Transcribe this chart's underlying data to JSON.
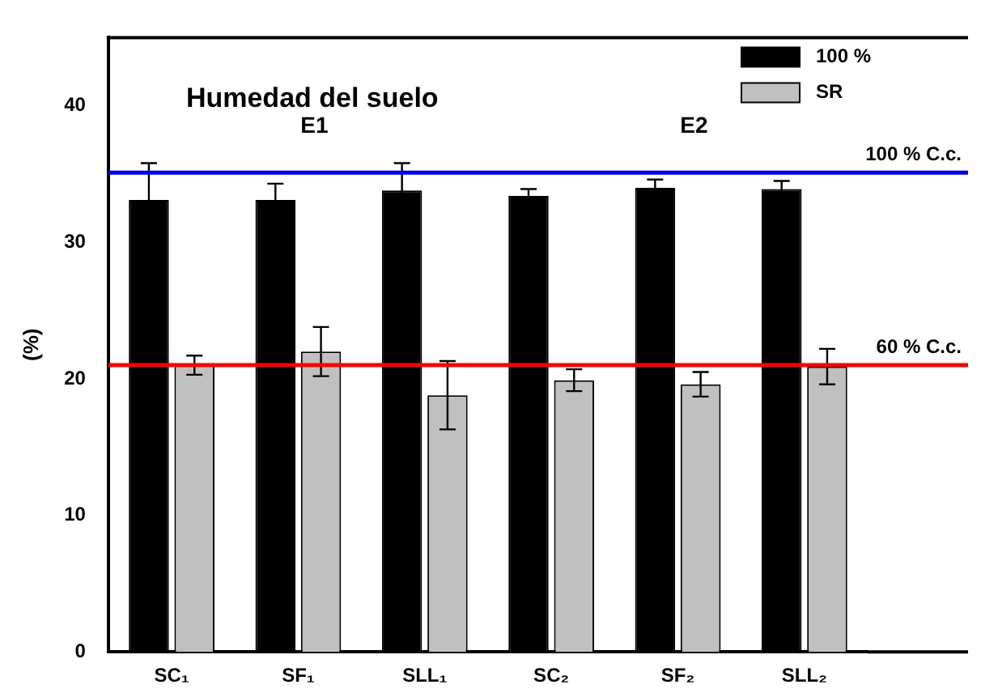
{
  "chart_data": {
    "type": "bar",
    "title": "Humedad del suelo",
    "ylabel": "(%)",
    "categories": [
      "SC₁",
      "SF₁",
      "SLL₁",
      "SC₂",
      "SF₂",
      "SLL₂"
    ],
    "series": [
      {
        "name": "100 %",
        "color": "#000000",
        "values": [
          33.1,
          33.1,
          33.8,
          33.4,
          34.0,
          33.9
        ],
        "errors": [
          2.7,
          1.2,
          2.0,
          0.5,
          0.6,
          0.6
        ]
      },
      {
        "name": "SR",
        "color": "#c0c0c0",
        "values": [
          21.0,
          22.0,
          18.8,
          19.9,
          19.6,
          20.9
        ],
        "errors": [
          0.7,
          1.8,
          2.5,
          0.8,
          0.9,
          1.3
        ]
      }
    ],
    "ylim": [
      0,
      45
    ],
    "yticks": [
      0,
      10,
      20,
      30,
      40
    ],
    "grid": false,
    "legend": "top right",
    "ref_lines": [
      {
        "axis": "y",
        "value": 35.1,
        "label": "100 % C.c.",
        "color": "#0000ff"
      },
      {
        "axis": "y",
        "value": 21.0,
        "label": "60 % C.c.",
        "color": "#ff0000"
      }
    ],
    "annotations": [
      "E1",
      "E2"
    ]
  }
}
